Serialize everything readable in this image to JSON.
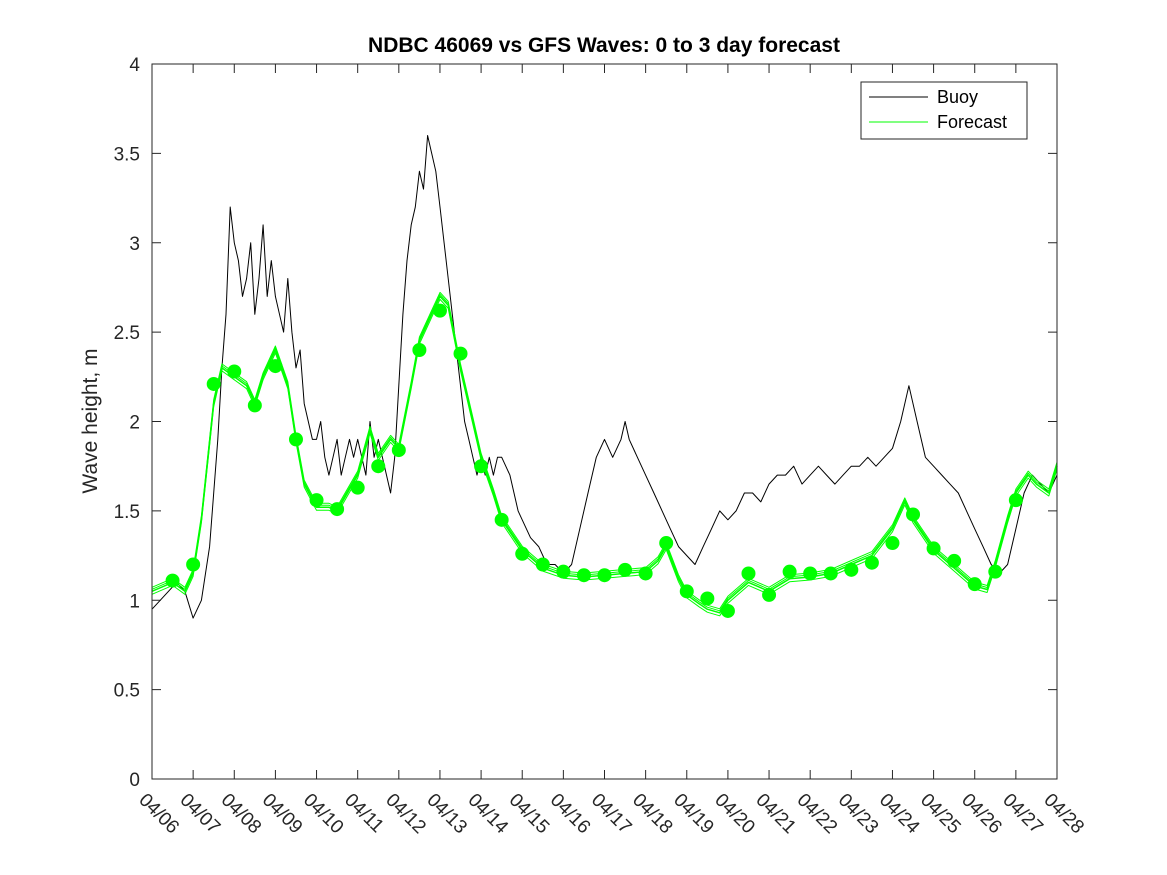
{
  "chart_data": {
    "type": "line",
    "title": "NDBC 46069 vs GFS Waves: 0 to 3 day forecast",
    "xlabel": "",
    "ylabel": "Wave height, m",
    "x_unit": "day of April (MM/DD tick labels)",
    "xlim": [
      6,
      28
    ],
    "ylim": [
      0,
      4
    ],
    "x_ticks": [
      6,
      7,
      8,
      9,
      10,
      11,
      12,
      13,
      14,
      15,
      16,
      17,
      18,
      19,
      20,
      21,
      22,
      23,
      24,
      25,
      26,
      27,
      28
    ],
    "x_tick_labels": [
      "04/06",
      "04/07",
      "04/08",
      "04/09",
      "04/10",
      "04/11",
      "04/12",
      "04/13",
      "04/14",
      "04/15",
      "04/16",
      "04/17",
      "04/18",
      "04/19",
      "04/20",
      "04/21",
      "04/22",
      "04/23",
      "04/24",
      "04/25",
      "04/26",
      "04/27",
      "04/28"
    ],
    "y_ticks": [
      0,
      0.5,
      1,
      1.5,
      2,
      2.5,
      3,
      3.5,
      4
    ],
    "y_tick_labels": [
      "0",
      "0.5",
      "1",
      "1.5",
      "2",
      "2.5",
      "3",
      "3.5",
      "4"
    ],
    "grid": false,
    "legend": {
      "position": "top-right",
      "entries": [
        "Buoy",
        "Forecast"
      ]
    },
    "colors": {
      "buoy": "#000000",
      "forecast": "#00ff00",
      "axes": "#262626"
    },
    "series": [
      {
        "name": "Buoy",
        "style": "line",
        "x": [
          6.0,
          6.2,
          6.4,
          6.6,
          6.8,
          7.0,
          7.2,
          7.4,
          7.5,
          7.6,
          7.7,
          7.8,
          7.9,
          8.0,
          8.1,
          8.2,
          8.3,
          8.4,
          8.5,
          8.6,
          8.7,
          8.8,
          8.9,
          9.0,
          9.1,
          9.2,
          9.3,
          9.4,
          9.5,
          9.6,
          9.7,
          9.8,
          9.9,
          10.0,
          10.1,
          10.2,
          10.3,
          10.4,
          10.5,
          10.6,
          10.7,
          10.8,
          10.9,
          11.0,
          11.1,
          11.2,
          11.3,
          11.4,
          11.5,
          11.6,
          11.7,
          11.8,
          11.9,
          12.0,
          12.1,
          12.2,
          12.3,
          12.4,
          12.5,
          12.6,
          12.7,
          12.8,
          12.9,
          13.0,
          13.1,
          13.2,
          13.3,
          13.4,
          13.5,
          13.6,
          13.7,
          13.8,
          13.9,
          14.0,
          14.1,
          14.2,
          14.3,
          14.4,
          14.5,
          14.6,
          14.7,
          14.8,
          14.9,
          15.0,
          15.2,
          15.4,
          15.6,
          15.8,
          16.0,
          16.2,
          16.4,
          16.6,
          16.8,
          17.0,
          17.2,
          17.4,
          17.5,
          17.6,
          17.8,
          18.0,
          18.2,
          18.4,
          18.6,
          18.8,
          19.0,
          19.2,
          19.4,
          19.6,
          19.8,
          20.0,
          20.2,
          20.4,
          20.6,
          20.8,
          21.0,
          21.2,
          21.4,
          21.6,
          21.8,
          22.0,
          22.2,
          22.4,
          22.6,
          22.8,
          23.0,
          23.2,
          23.4,
          23.6,
          23.8,
          24.0,
          24.2,
          24.4,
          24.6,
          24.8,
          25.0,
          25.2,
          25.4,
          25.6,
          25.8,
          26.0,
          26.2,
          26.4,
          26.6,
          26.8,
          27.0,
          27.2,
          27.4,
          27.6,
          27.8,
          28.0
        ],
        "values": [
          0.95,
          1.0,
          1.05,
          1.1,
          1.05,
          0.9,
          1.0,
          1.3,
          1.6,
          1.9,
          2.3,
          2.6,
          3.2,
          3.0,
          2.9,
          2.7,
          2.8,
          3.0,
          2.6,
          2.8,
          3.1,
          2.7,
          2.9,
          2.7,
          2.6,
          2.5,
          2.8,
          2.5,
          2.3,
          2.4,
          2.1,
          2.0,
          1.9,
          1.9,
          2.0,
          1.8,
          1.7,
          1.8,
          1.9,
          1.7,
          1.8,
          1.9,
          1.8,
          1.9,
          1.8,
          1.7,
          2.0,
          1.8,
          1.9,
          1.8,
          1.7,
          1.6,
          1.8,
          2.2,
          2.6,
          2.9,
          3.1,
          3.2,
          3.4,
          3.3,
          3.6,
          3.5,
          3.4,
          3.2,
          3.0,
          2.8,
          2.6,
          2.4,
          2.2,
          2.0,
          1.9,
          1.8,
          1.7,
          1.8,
          1.7,
          1.8,
          1.7,
          1.8,
          1.8,
          1.75,
          1.7,
          1.6,
          1.5,
          1.45,
          1.35,
          1.3,
          1.2,
          1.2,
          1.15,
          1.2,
          1.4,
          1.6,
          1.8,
          1.9,
          1.8,
          1.9,
          2.0,
          1.9,
          1.8,
          1.7,
          1.6,
          1.5,
          1.4,
          1.3,
          1.25,
          1.2,
          1.3,
          1.4,
          1.5,
          1.45,
          1.5,
          1.6,
          1.6,
          1.55,
          1.65,
          1.7,
          1.7,
          1.75,
          1.65,
          1.7,
          1.75,
          1.7,
          1.65,
          1.7,
          1.75,
          1.75,
          1.8,
          1.75,
          1.8,
          1.85,
          2.0,
          2.2,
          2.0,
          1.8,
          1.75,
          1.7,
          1.65,
          1.6,
          1.5,
          1.4,
          1.3,
          1.2,
          1.15,
          1.2,
          1.4,
          1.6,
          1.7,
          1.65,
          1.6,
          1.7
        ]
      },
      {
        "name": "Forecast",
        "style": "line",
        "x": [
          6.0,
          6.5,
          6.8,
          7.0,
          7.2,
          7.5,
          7.7,
          8.0,
          8.3,
          8.5,
          8.7,
          9.0,
          9.3,
          9.5,
          9.7,
          10.0,
          10.3,
          10.5,
          10.7,
          11.0,
          11.3,
          11.5,
          11.8,
          12.0,
          12.3,
          12.5,
          12.8,
          13.0,
          13.2,
          13.5,
          13.8,
          14.0,
          14.3,
          14.5,
          15.0,
          15.5,
          16.0,
          16.5,
          17.0,
          17.5,
          18.0,
          18.3,
          18.5,
          18.8,
          19.0,
          19.3,
          19.5,
          19.8,
          20.0,
          20.5,
          21.0,
          21.5,
          22.0,
          22.5,
          23.0,
          23.5,
          24.0,
          24.3,
          24.5,
          25.0,
          25.5,
          26.0,
          26.3,
          26.5,
          26.8,
          27.0,
          27.3,
          27.5,
          27.8,
          28.0
        ],
        "values": [
          1.05,
          1.1,
          1.05,
          1.15,
          1.45,
          2.1,
          2.3,
          2.25,
          2.2,
          2.1,
          2.25,
          2.4,
          2.2,
          1.9,
          1.65,
          1.52,
          1.52,
          1.5,
          1.58,
          1.7,
          1.95,
          1.8,
          1.9,
          1.85,
          2.2,
          2.45,
          2.6,
          2.7,
          2.65,
          2.3,
          2.0,
          1.8,
          1.6,
          1.45,
          1.28,
          1.18,
          1.14,
          1.13,
          1.14,
          1.15,
          1.16,
          1.22,
          1.3,
          1.12,
          1.03,
          0.98,
          0.95,
          0.93,
          1.0,
          1.1,
          1.05,
          1.12,
          1.13,
          1.15,
          1.2,
          1.25,
          1.4,
          1.55,
          1.45,
          1.28,
          1.18,
          1.08,
          1.06,
          1.2,
          1.45,
          1.6,
          1.7,
          1.65,
          1.6,
          1.75
        ]
      }
    ],
    "forecast_markers": {
      "x": [
        6.5,
        7.0,
        7.5,
        8.0,
        8.5,
        9.0,
        9.5,
        10.0,
        10.5,
        11.0,
        11.5,
        12.0,
        12.5,
        13.0,
        13.5,
        14.0,
        14.5,
        15.0,
        15.5,
        16.0,
        16.5,
        17.0,
        17.5,
        18.0,
        18.5,
        19.0,
        19.5,
        20.0,
        20.5,
        21.0,
        21.5,
        22.0,
        22.5,
        23.0,
        23.5,
        24.0,
        24.5,
        25.0,
        25.5,
        26.0,
        26.5,
        27.0
      ],
      "values": [
        1.11,
        1.2,
        2.21,
        2.28,
        2.09,
        2.31,
        1.9,
        1.56,
        1.51,
        1.63,
        1.75,
        1.84,
        2.4,
        2.62,
        2.38,
        1.75,
        1.45,
        1.26,
        1.2,
        1.16,
        1.14,
        1.14,
        1.17,
        1.15,
        1.32,
        1.05,
        1.01,
        0.94,
        1.15,
        1.03,
        1.16,
        1.15,
        1.15,
        1.17,
        1.21,
        1.32,
        1.48,
        1.29,
        1.22,
        1.09,
        1.16,
        1.56
      ]
    }
  }
}
